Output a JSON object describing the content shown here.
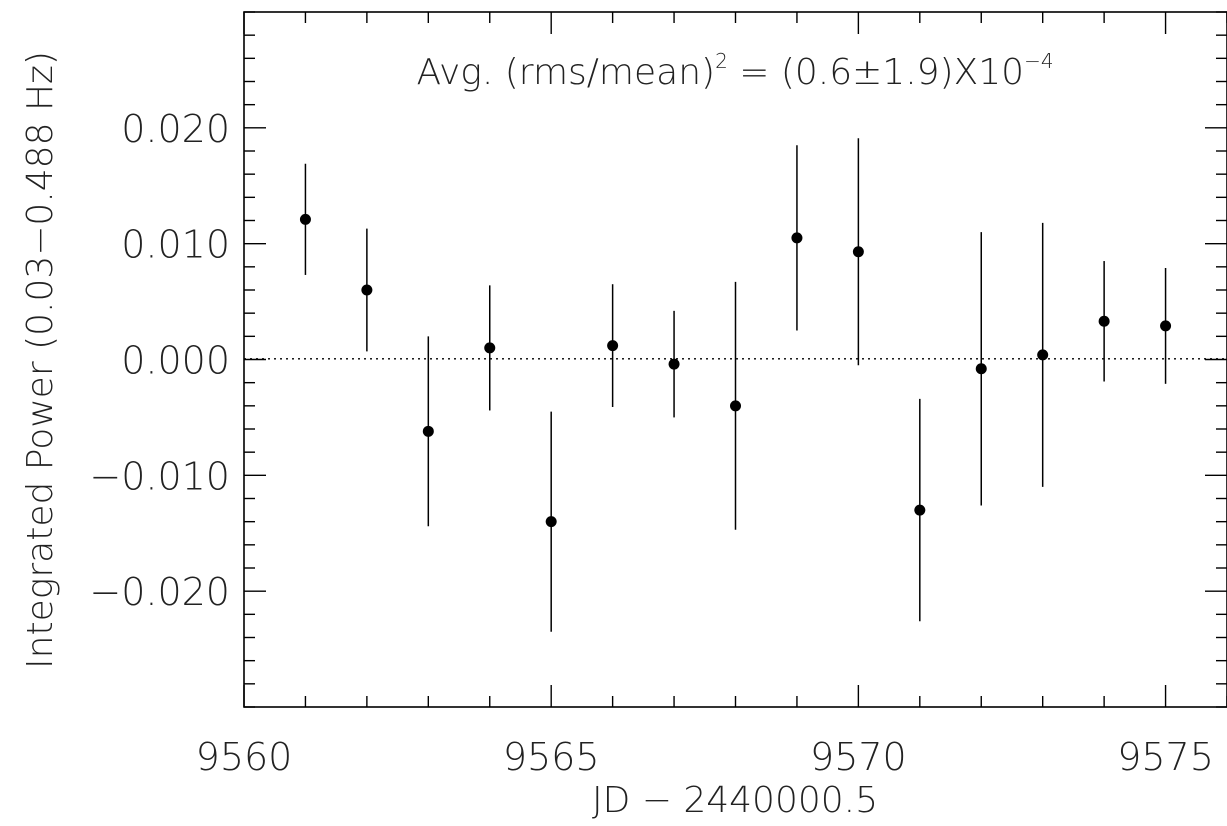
{
  "chart_data": {
    "type": "scatter",
    "title": "",
    "xlabel": "JD − 2440000.5",
    "ylabel": "Integrated Power (0.03−0.488 Hz)",
    "xlim": [
      9560,
      9576
    ],
    "ylim": [
      -0.03,
      0.03
    ],
    "x_ticks": [
      9560,
      9565,
      9570,
      9575
    ],
    "x_tick_labels": [
      "9560",
      "9565",
      "9570",
      "9575"
    ],
    "y_ticks": [
      -0.02,
      -0.01,
      0.0,
      0.01,
      0.02
    ],
    "y_tick_labels": [
      "−0.020",
      "−0.010",
      "0.000",
      "0.010",
      "0.020"
    ],
    "grid": false,
    "reference_line": {
      "y": 6e-05,
      "style": "dotted"
    },
    "annotation": {
      "prefix": "Avg. (rms/mean)",
      "exponent1": "2",
      "middle": " = (0.6±1.9)X10",
      "exponent2": "−4"
    },
    "series": [
      {
        "points": [
          {
            "x": 9561,
            "y": 0.0121,
            "err": 0.0048
          },
          {
            "x": 9562,
            "y": 0.006,
            "err": 0.0053
          },
          {
            "x": 9563,
            "y": -0.0062,
            "err": 0.0082
          },
          {
            "x": 9564,
            "y": 0.001,
            "err": 0.0054
          },
          {
            "x": 9565,
            "y": -0.014,
            "err": 0.0095
          },
          {
            "x": 9566,
            "y": 0.0012,
            "err": 0.0053
          },
          {
            "x": 9567,
            "y": -0.0004,
            "err": 0.0046
          },
          {
            "x": 9568,
            "y": -0.004,
            "err": 0.0107
          },
          {
            "x": 9569,
            "y": 0.0105,
            "err": 0.008
          },
          {
            "x": 9570,
            "y": 0.0093,
            "err": 0.0098
          },
          {
            "x": 9571,
            "y": -0.013,
            "err": 0.0096
          },
          {
            "x": 9572,
            "y": -0.0008,
            "err": 0.0118
          },
          {
            "x": 9573,
            "y": 0.0004,
            "err": 0.0114
          },
          {
            "x": 9574,
            "y": 0.0033,
            "err": 0.0052
          },
          {
            "x": 9575,
            "y": 0.0029,
            "err": 0.005
          }
        ]
      }
    ]
  }
}
